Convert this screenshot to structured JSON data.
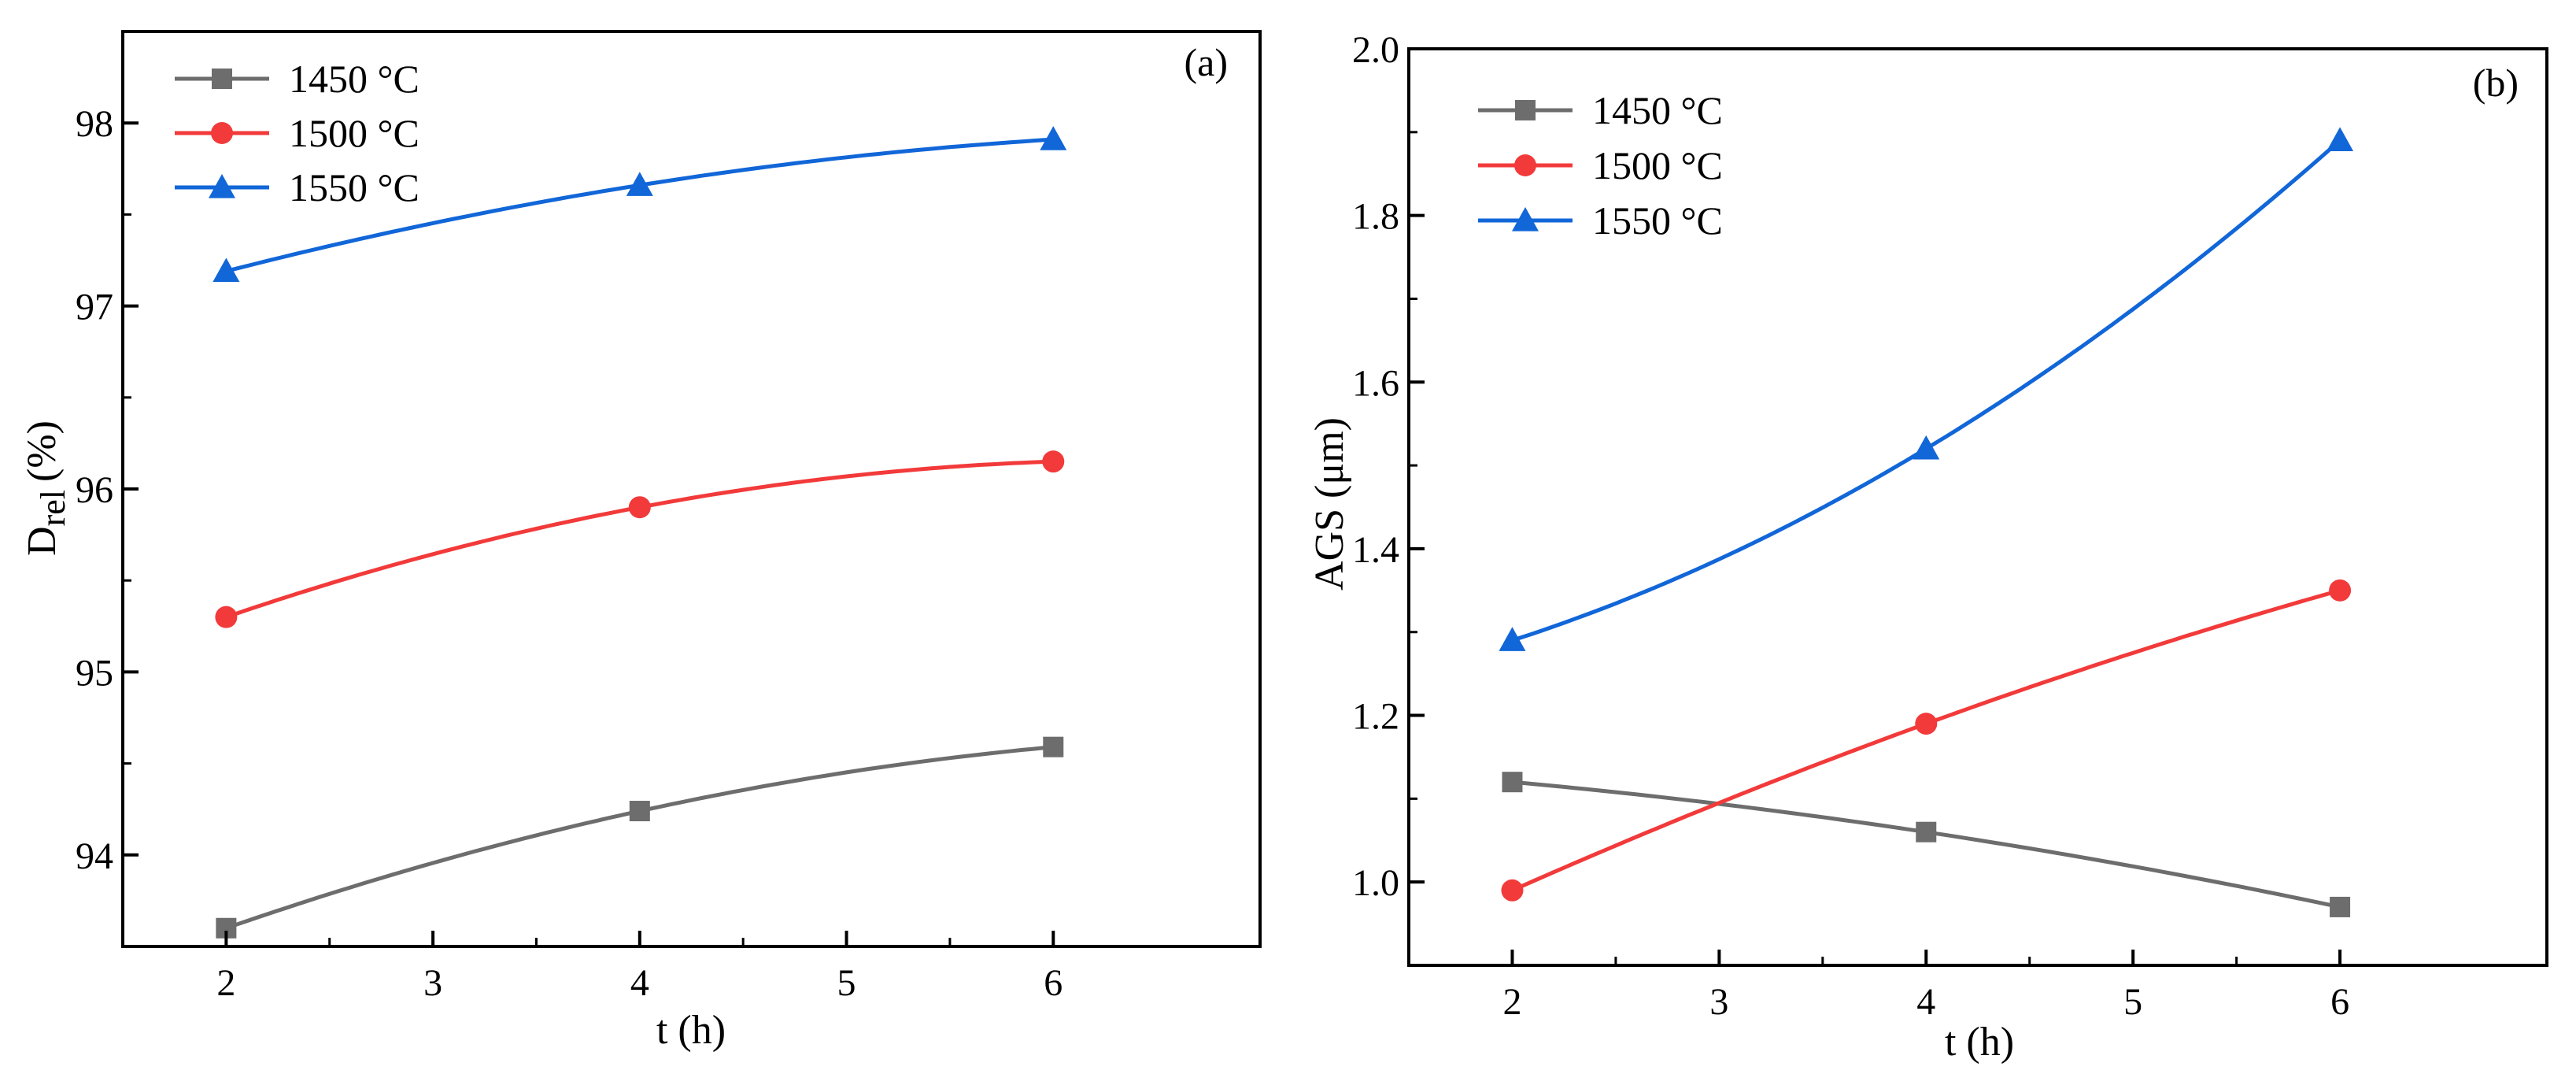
{
  "chart_data": [
    {
      "type": "line",
      "panel_label": "(a)",
      "title": "",
      "xlabel": "t (h)",
      "ylabel_main": "D",
      "ylabel_sub": "rel",
      "ylabel_unit": "(%)",
      "xlim": [
        1.5,
        7.0
      ],
      "ylim": [
        93.5,
        98.5
      ],
      "xticks": [
        2,
        3,
        4,
        5,
        6
      ],
      "yticks": [
        94,
        95,
        96,
        97,
        98
      ],
      "xtick_labels": [
        "2",
        "3",
        "4",
        "5",
        "6"
      ],
      "ytick_labels": [
        "94",
        "95",
        "96",
        "97",
        "98"
      ],
      "legend_position": "top-left",
      "series": [
        {
          "name": "1450 °C",
          "color": "#6d6d6d",
          "marker": "square",
          "x": [
            2,
            4,
            6
          ],
          "values": [
            93.6,
            94.24,
            94.59
          ]
        },
        {
          "name": "1500 °C",
          "color": "#f23a3a",
          "marker": "circle",
          "x": [
            2,
            4,
            6
          ],
          "values": [
            95.3,
            95.9,
            96.15
          ]
        },
        {
          "name": "1550 °C",
          "color": "#1166d8",
          "marker": "triangle",
          "x": [
            2,
            4,
            6
          ],
          "values": [
            97.19,
            97.66,
            97.91
          ]
        }
      ]
    },
    {
      "type": "line",
      "panel_label": "(b)",
      "title": "",
      "xlabel": "t (h)",
      "ylabel": "AGS (μm)",
      "xlim": [
        1.5,
        7.0
      ],
      "ylim": [
        0.9,
        2.0
      ],
      "xticks": [
        2,
        3,
        4,
        5,
        6
      ],
      "yticks": [
        1.0,
        1.2,
        1.4,
        1.6,
        1.8,
        2.0
      ],
      "xtick_labels": [
        "2",
        "3",
        "4",
        "5",
        "6"
      ],
      "ytick_labels": [
        "1.0",
        "1.2",
        "1.4",
        "1.6",
        "1.8",
        "2.0"
      ],
      "legend_position": "top-left",
      "series": [
        {
          "name": "1450 °C",
          "color": "#6d6d6d",
          "marker": "square",
          "x": [
            2,
            4,
            6
          ],
          "values": [
            1.12,
            1.06,
            0.97
          ]
        },
        {
          "name": "1500 °C",
          "color": "#f23a3a",
          "marker": "circle",
          "x": [
            2,
            4,
            6
          ],
          "values": [
            0.99,
            1.19,
            1.35
          ]
        },
        {
          "name": "1550 °C",
          "color": "#1166d8",
          "marker": "triangle",
          "x": [
            2,
            4,
            6
          ],
          "values": [
            1.29,
            1.52,
            1.89
          ]
        }
      ]
    }
  ]
}
